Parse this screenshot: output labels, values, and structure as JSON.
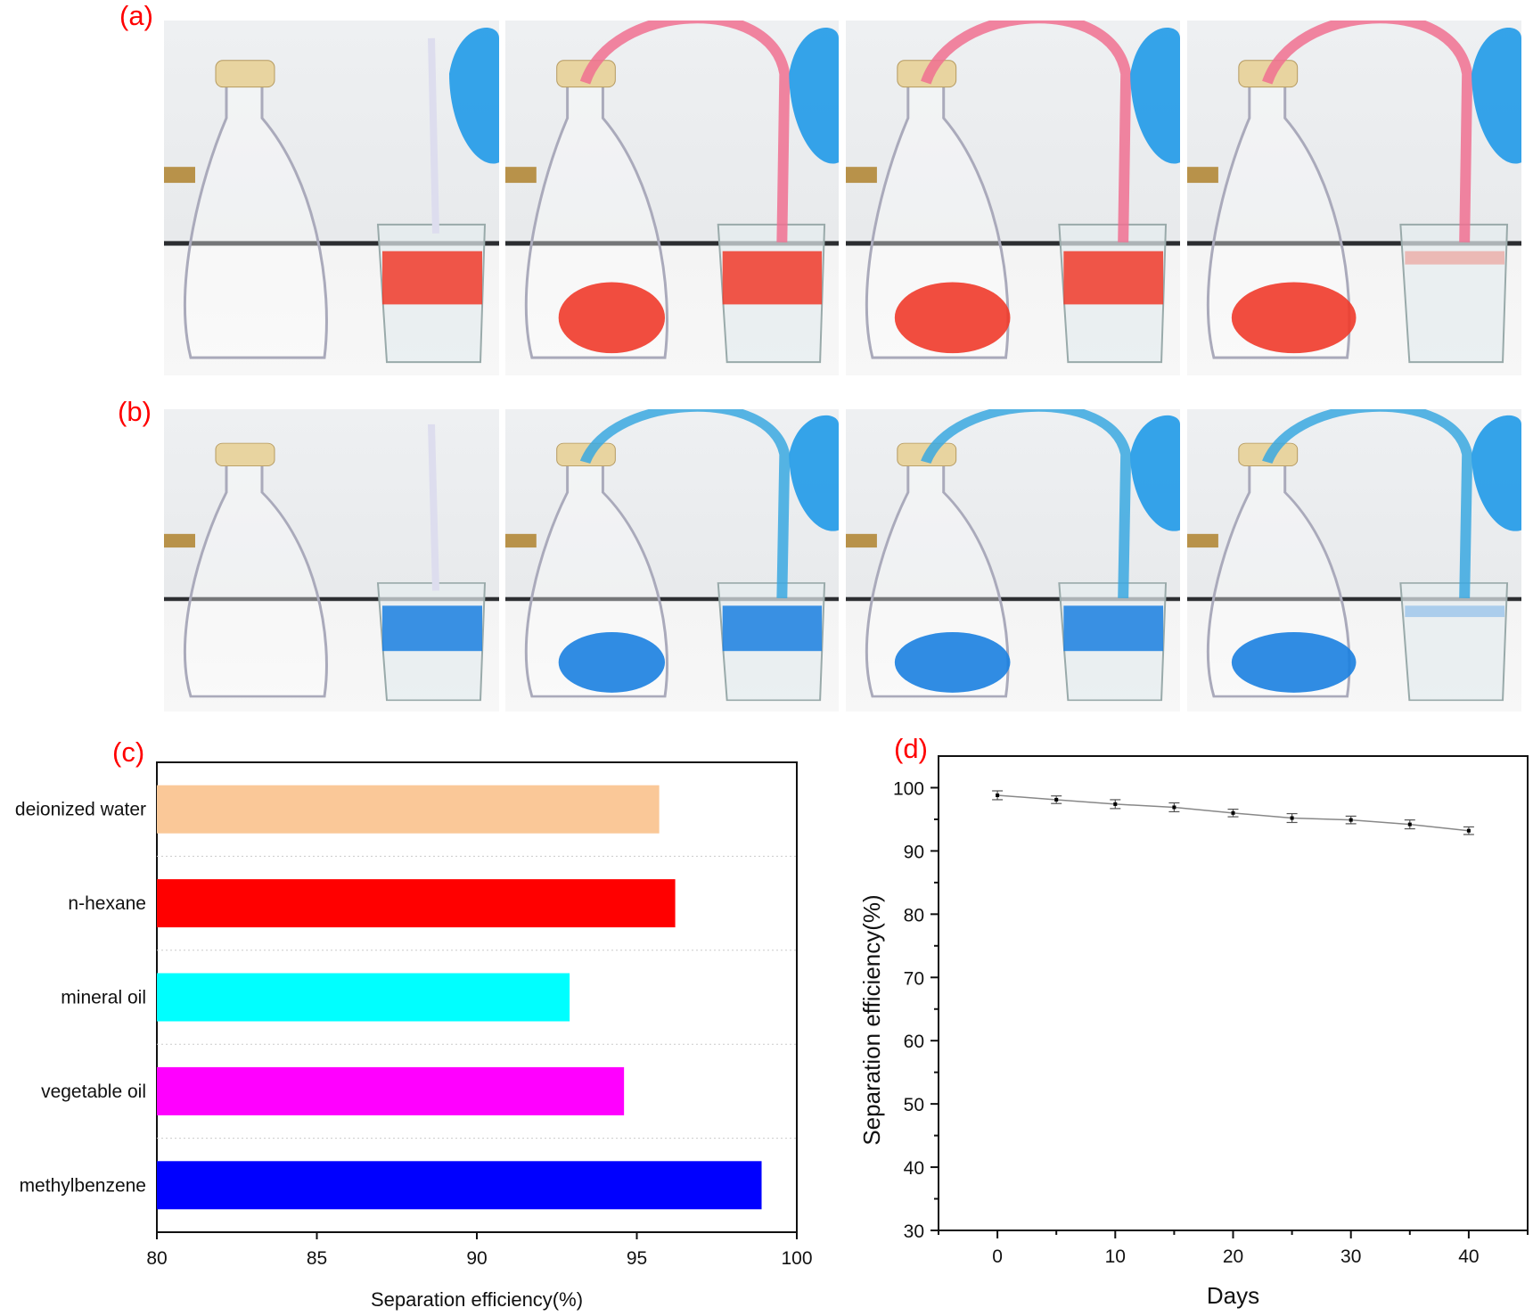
{
  "panels": {
    "a": {
      "label": "(a)",
      "liquid_color": "#f03a2a",
      "photos": 4
    },
    "b": {
      "label": "(b)",
      "liquid_color": "#1a7fe0",
      "photos": 4
    },
    "c": {
      "label": "(c)"
    },
    "d": {
      "label": "(d)"
    }
  },
  "chart_data": [
    {
      "type": "bar",
      "orientation": "horizontal",
      "title": "",
      "categories": [
        "deionized water",
        "n-hexane",
        "mineral oil",
        "vegetable oil",
        "methylbenzene"
      ],
      "values": [
        95.7,
        96.2,
        92.9,
        94.6,
        98.9
      ],
      "colors": [
        "#fac898",
        "#ff0000",
        "#00ffff",
        "#ff00ff",
        "#0000ff"
      ],
      "xlabel": "Separation efficiency(%)",
      "ylabel": "",
      "xlim": [
        80,
        100
      ],
      "xticks": [
        "80",
        "85",
        "90",
        "95",
        "100"
      ],
      "grid": "dotted horizontal separators"
    },
    {
      "type": "line",
      "title": "",
      "x": [
        0,
        5,
        10,
        15,
        20,
        25,
        30,
        35,
        40
      ],
      "y": [
        98.8,
        98.1,
        97.4,
        96.9,
        96.0,
        95.2,
        94.9,
        94.2,
        93.2
      ],
      "error": [
        0.7,
        0.6,
        0.7,
        0.7,
        0.6,
        0.7,
        0.6,
        0.7,
        0.6
      ],
      "xlabel": "Days",
      "ylabel": "Separation efficiency(%)",
      "xlim": [
        -5,
        45
      ],
      "ylim": [
        30,
        105
      ],
      "xticks": [
        "0",
        "10",
        "20",
        "30",
        "40"
      ],
      "yticks": [
        "30",
        "40",
        "50",
        "60",
        "70",
        "80",
        "90",
        "100"
      ],
      "line_color": "#888888",
      "grid": false
    }
  ]
}
